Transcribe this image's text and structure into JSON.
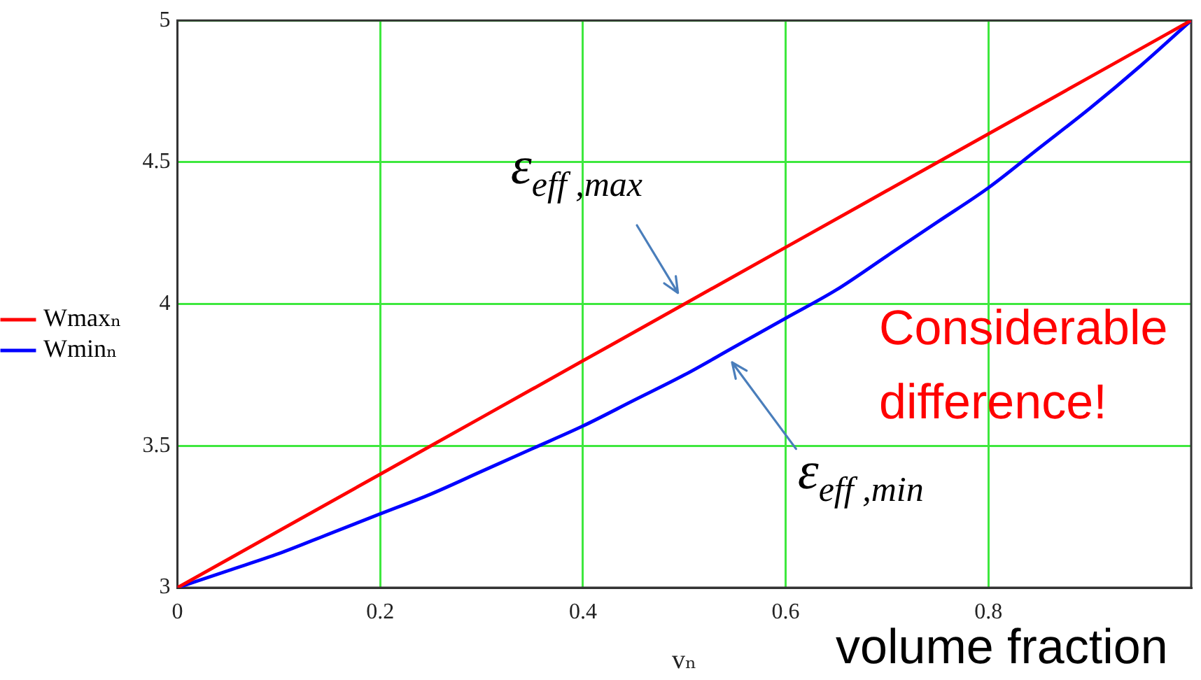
{
  "chart_data": {
    "type": "line",
    "xlabel": "vₙ",
    "series": [
      {
        "name": "Wmaxₙ",
        "color": "#ff0000",
        "x": [
          0,
          0.1,
          0.2,
          0.3,
          0.4,
          0.5,
          0.6,
          0.7,
          0.8,
          0.9,
          1
        ],
        "values": [
          3,
          3.2,
          3.4,
          3.6,
          3.8,
          4.0,
          4.2,
          4.4,
          4.6,
          4.8,
          5
        ]
      },
      {
        "name": "Wminₙ",
        "color": "#0000ff",
        "x": [
          0,
          0.05,
          0.1,
          0.15,
          0.2,
          0.25,
          0.3,
          0.35,
          0.4,
          0.45,
          0.5,
          0.55,
          0.6,
          0.65,
          0.7,
          0.75,
          0.8,
          0.85,
          0.9,
          0.95,
          1
        ],
        "values": [
          3,
          3.06,
          3.12,
          3.19,
          3.26,
          3.33,
          3.41,
          3.49,
          3.57,
          3.66,
          3.75,
          3.85,
          3.95,
          4.05,
          4.17,
          4.29,
          4.41,
          4.55,
          4.69,
          4.84,
          5
        ]
      }
    ],
    "xlim": [
      0,
      1
    ],
    "xticks": [
      0,
      0.2,
      0.4,
      0.6,
      0.8
    ],
    "ylim": [
      3,
      5
    ],
    "yticks": [
      3,
      3.5,
      4,
      4.5,
      5
    ],
    "grid": true,
    "legend": "left",
    "marker": "none",
    "line_style": "solid",
    "annotations": [
      {
        "text": "ε$_{eff ,max}$",
        "x": 0.5,
        "y": 4.0
      },
      {
        "text": "ε$_{eff ,min}$",
        "x": 0.54,
        "y": 3.83
      },
      "Considerable difference!",
      "volume fraction"
    ]
  }
}
